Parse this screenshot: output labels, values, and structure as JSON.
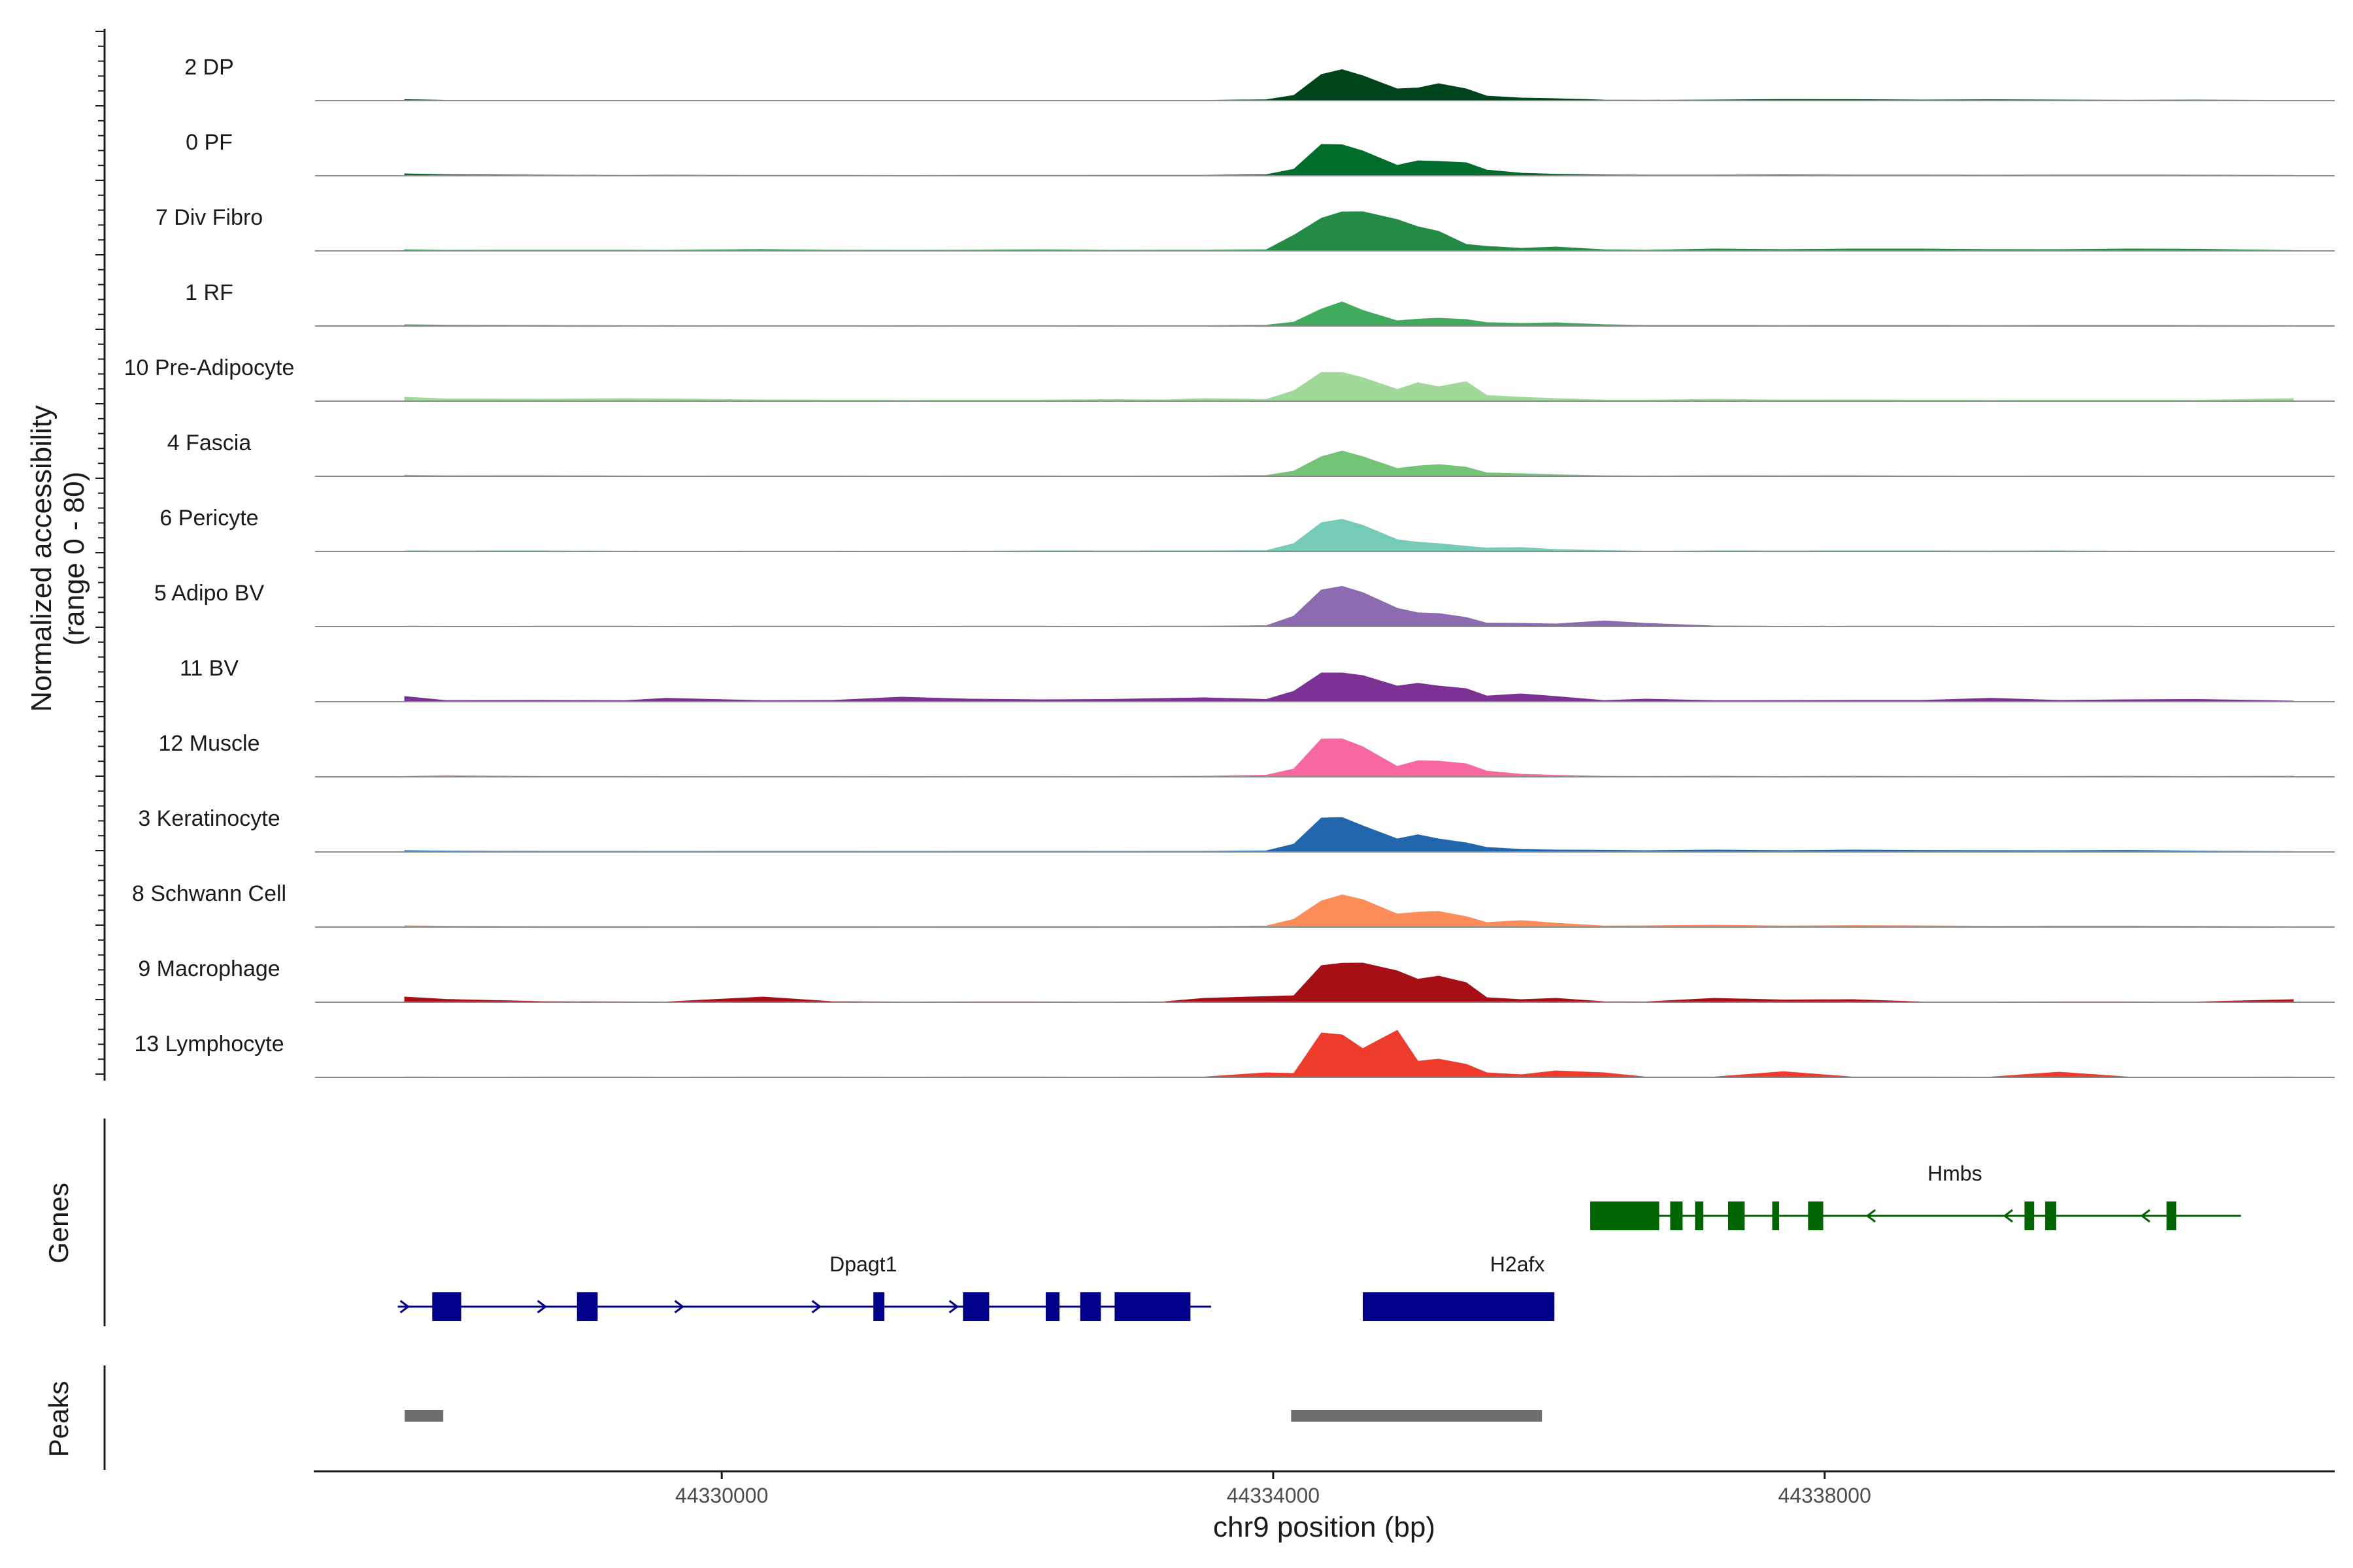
{
  "chart_data": {
    "type": "area",
    "title": "",
    "chromosome": "chr9",
    "xlabel": "chr9 position (bp)",
    "ylabel_line1": "Normalized accessibility",
    "ylabel_line2": "(range 0 - 80)",
    "ylim": [
      0,
      80
    ],
    "xlim": [
      44327050,
      44341700
    ],
    "x_ticks": [
      44330000,
      44334000,
      44338000
    ],
    "x_tick_labels": [
      "44330000",
      "44334000",
      "44338000"
    ],
    "panels": {
      "genes": "Genes",
      "peaks": "Peaks"
    },
    "bin_positions": [
      44327700,
      44328000,
      44328700,
      44329300,
      44329600,
      44330300,
      44330800,
      44331300,
      44331800,
      44332300,
      44332800,
      44333200,
      44333500,
      44333950,
      44334150,
      44334350,
      44334500,
      44334650,
      44334900,
      44335050,
      44335200,
      44335400,
      44335550,
      44335800,
      44336050,
      44336400,
      44336700,
      44337200,
      44337700,
      44338200,
      44338700,
      44339200,
      44339700,
      44340200,
      44340700,
      44341400
    ],
    "series": [
      {
        "name": "2 DP",
        "color": "#00441b",
        "values": [
          0.8,
          0.3,
          0.2,
          0.2,
          0.2,
          0.2,
          0.2,
          0.2,
          0.2,
          0.2,
          0.2,
          0.2,
          0.2,
          0.8,
          4,
          20,
          27,
          19,
          9,
          11,
          13,
          9,
          4,
          2,
          1.5,
          0.5,
          0.3,
          0.5,
          1,
          0.8,
          0.5,
          0.8,
          0.5,
          0.3,
          0.5,
          0.2
        ]
      },
      {
        "name": "0 PF",
        "color": "#006d2c",
        "values": [
          1.5,
          1,
          0.5,
          0.3,
          0.5,
          0.3,
          0.3,
          0.3,
          0.3,
          0.3,
          0.4,
          0.4,
          0.4,
          1,
          5,
          24,
          27,
          19,
          8,
          13,
          11,
          10,
          5,
          2,
          1.2,
          0.8,
          0.5,
          0.5,
          0.8,
          0.5,
          0.5,
          0.5,
          0.5,
          0.5,
          0.5,
          0.3
        ]
      },
      {
        "name": "7 Div Fibro",
        "color": "#238b45",
        "values": [
          0.8,
          0.5,
          0.5,
          0.5,
          0.5,
          1,
          0.5,
          0.5,
          0.5,
          0.8,
          0.5,
          0.5,
          0.5,
          1,
          12,
          25,
          34,
          30,
          24,
          21,
          15,
          5,
          4,
          2,
          3,
          1,
          0.5,
          1.5,
          1.2,
          1.5,
          1.5,
          1.2,
          1,
          1.5,
          1.5,
          0.3
        ]
      },
      {
        "name": "1 RF",
        "color": "#41ab5d",
        "values": [
          1,
          0.8,
          0.5,
          0.3,
          0.3,
          0.3,
          0.3,
          0.3,
          0.3,
          0.3,
          0.3,
          0.3,
          0.3,
          0.8,
          3,
          13,
          21,
          12,
          4,
          6,
          6,
          5,
          3,
          2,
          2.5,
          1.2,
          0.5,
          0.5,
          0.5,
          0.5,
          0.5,
          0.5,
          0.5,
          0.5,
          0.5,
          0.3
        ]
      },
      {
        "name": "10 Pre-Adipocyte",
        "color": "#a1d99b",
        "values": [
          3,
          2,
          1.5,
          2,
          2,
          1,
          0.8,
          0.8,
          0.8,
          0.8,
          1.5,
          1,
          2,
          1.5,
          8,
          22,
          25,
          18,
          9,
          16,
          11,
          15,
          5,
          3,
          2,
          1,
          0.8,
          1.5,
          1,
          1,
          0.8,
          0.8,
          0.8,
          0.8,
          0.8,
          2
        ]
      },
      {
        "name": "4 Fascia",
        "color": "#74c476",
        "values": [
          0.8,
          0.5,
          0.5,
          0.3,
          0.3,
          0.3,
          0.3,
          0.3,
          0.3,
          0.3,
          0.3,
          0.3,
          0.3,
          0.8,
          4,
          15,
          22,
          15,
          6,
          9,
          9,
          7,
          3,
          2,
          1.2,
          0.5,
          0.3,
          0.5,
          0.5,
          0.5,
          0.3,
          0.3,
          0.3,
          0.3,
          0.3,
          0.2
        ]
      },
      {
        "name": "6 Pericyte",
        "color": "#76cbb7",
        "values": [
          0.5,
          0.5,
          0.5,
          0.3,
          0.3,
          0.3,
          0.3,
          0.3,
          0.3,
          0.5,
          0.5,
          0.5,
          0.5,
          0.8,
          6,
          22,
          28,
          20,
          9,
          8,
          6,
          4,
          3,
          3,
          1.5,
          0.8,
          0.3,
          0.5,
          0.5,
          0.5,
          0.5,
          0.5,
          0.5,
          0.3,
          0.3,
          0.2
        ]
      },
      {
        "name": "5 Adipo BV",
        "color": "#8c6bb1",
        "values": [
          0.3,
          0.3,
          0.3,
          0.3,
          0.3,
          0.3,
          0.3,
          0.3,
          0.3,
          0.3,
          0.3,
          0.3,
          0.3,
          0.8,
          8,
          28,
          35,
          26,
          14,
          12,
          10,
          7,
          3,
          2.5,
          2,
          5,
          2.5,
          0.5,
          0.3,
          0.3,
          0.3,
          0.3,
          0.3,
          0.3,
          0.3,
          0.2
        ]
      },
      {
        "name": "11 BV",
        "color": "#7b3294",
        "values": [
          4,
          1,
          1,
          0.8,
          3,
          0.8,
          1,
          4,
          2,
          1.5,
          2,
          2.5,
          3,
          2,
          8,
          22,
          25,
          20,
          12,
          16,
          12,
          10,
          5,
          6,
          4,
          1,
          2,
          0.8,
          1,
          1,
          1,
          3,
          1,
          1.5,
          2,
          0.5
        ]
      },
      {
        "name": "12 Muscle",
        "color": "#f768a1",
        "values": [
          0.3,
          1,
          0.3,
          0.3,
          0.3,
          0.3,
          0.3,
          0.3,
          0.3,
          0.3,
          0.3,
          0.3,
          0.5,
          1.5,
          6,
          29,
          33,
          23,
          8,
          14,
          12,
          10,
          5,
          2,
          1.2,
          0.5,
          0.3,
          0.5,
          0.3,
          0.5,
          0.3,
          0.3,
          0.3,
          0.5,
          0.3,
          0.5
        ]
      },
      {
        "name": "3 Keratinocyte",
        "color": "#2166ac",
        "values": [
          1,
          0.8,
          0.5,
          0.5,
          0.5,
          0.5,
          0.5,
          0.5,
          0.5,
          0.5,
          0.5,
          0.5,
          0.5,
          1,
          6,
          26,
          30,
          20,
          10,
          15,
          10,
          7,
          4,
          2,
          1.5,
          1.5,
          1,
          1.5,
          1.2,
          1.5,
          1.2,
          1.2,
          1,
          1.2,
          0.8,
          0.3
        ]
      },
      {
        "name": "8 Schwann Cell",
        "color": "#fc8d59",
        "values": [
          1,
          0.8,
          0.5,
          0.5,
          0.5,
          0.5,
          0.5,
          0.5,
          0.5,
          0.5,
          0.5,
          0.5,
          0.5,
          1,
          6,
          20,
          28,
          21,
          10,
          13,
          12,
          8,
          4,
          5,
          3,
          1,
          1,
          1.5,
          1,
          1.2,
          1,
          0.8,
          0.8,
          0.8,
          0.8,
          0.3
        ]
      },
      {
        "name": "9 Macrophage",
        "color": "#a50f15",
        "values": [
          4,
          2.5,
          0.5,
          0.3,
          0.3,
          4,
          0.5,
          0.3,
          0.3,
          0.3,
          0.3,
          0.3,
          3,
          5,
          5,
          28,
          34,
          30,
          24,
          20,
          20,
          15,
          4,
          2,
          3,
          0.5,
          0.3,
          3,
          2,
          2,
          0.3,
          0.3,
          0.3,
          0.3,
          0.3,
          2
        ]
      },
      {
        "name": "13 Lymphocyte",
        "color": "#ef3b2c",
        "values": [
          0.3,
          0.3,
          0.3,
          0.3,
          0.3,
          0.3,
          0.3,
          0.3,
          0.3,
          0.3,
          0.3,
          0.3,
          0.3,
          4,
          3,
          34,
          37,
          22,
          36,
          14,
          14,
          10,
          4,
          2,
          5,
          4,
          0.3,
          0.3,
          5,
          0.3,
          0.3,
          0.3,
          4,
          0.3,
          0.3,
          0.3
        ]
      }
    ],
    "genes": [
      {
        "name": "Dpagt1",
        "strand": "+",
        "color": "#00008b",
        "row": 1,
        "start": 44327650,
        "end": 44333550,
        "exons": [
          [
            44327900,
            44328110
          ],
          [
            44328950,
            44329100
          ],
          [
            44331100,
            44331180
          ],
          [
            44331750,
            44331940
          ],
          [
            44332350,
            44332450
          ],
          [
            44332600,
            44332750
          ],
          [
            44332850,
            44333400
          ]
        ]
      },
      {
        "name": "H2afx",
        "strand": "+",
        "color": "#00008b",
        "row": 1,
        "start": 44334650,
        "end": 44336040,
        "exons": [
          [
            44334650,
            44336040
          ]
        ]
      },
      {
        "name": "Hmbs",
        "strand": "-",
        "color": "#006400",
        "row": 0,
        "start": 44336300,
        "end": 44341020,
        "exons": [
          [
            44336300,
            44336800
          ],
          [
            44336880,
            44336970
          ],
          [
            44337060,
            44337120
          ],
          [
            44337300,
            44337420
          ],
          [
            44337620,
            44337670
          ],
          [
            44337880,
            44337990
          ],
          [
            44339450,
            44339520
          ],
          [
            44339600,
            44339680
          ],
          [
            44340480,
            44340550
          ]
        ]
      }
    ],
    "peaks": [
      [
        44327700,
        44327980
      ],
      [
        44334130,
        44335950
      ]
    ]
  }
}
